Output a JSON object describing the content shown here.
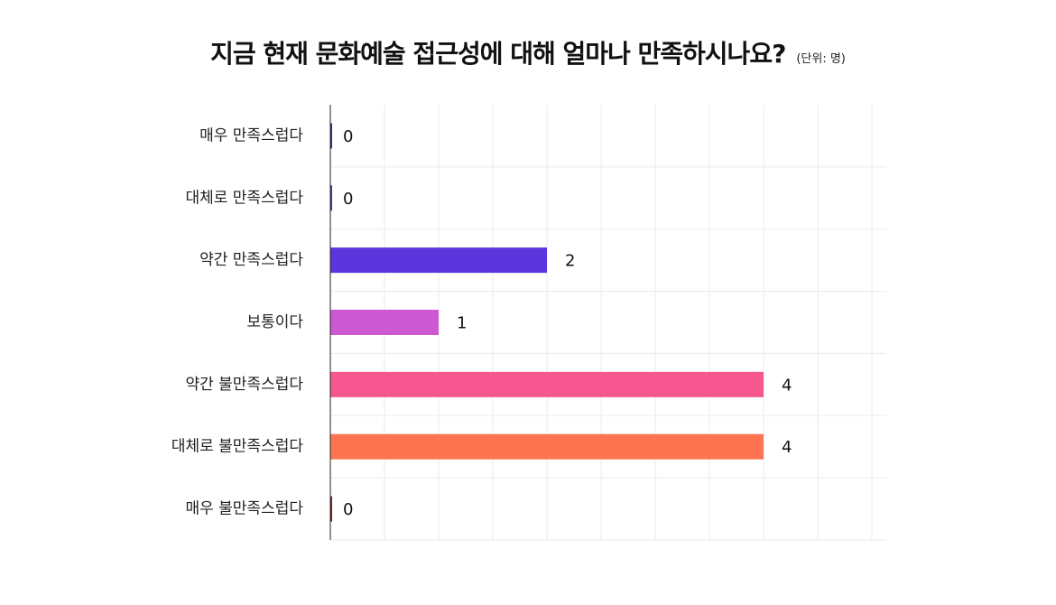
{
  "title": "지금 현재 문화예술 접근성에 대해 얼마나 만족하시나요?",
  "unit": "(단위: 명)",
  "chart_data": {
    "type": "bar",
    "orientation": "horizontal",
    "categories": [
      "매우 만족스럽다",
      "대체로 만족스럽다",
      "약간 만족스럽다",
      "보통이다",
      "약간 불만족스럽다",
      "대체로 불만족스럽다",
      "매우 불만족스럽다"
    ],
    "values": [
      0,
      0,
      2,
      1,
      4,
      4,
      0
    ],
    "value_labels": [
      "0",
      "0",
      "2",
      "1",
      "4",
      "4",
      "0"
    ],
    "colors": [
      "#2b2f8f",
      "#3b3fb0",
      "#5b35db",
      "#cc59d2",
      "#f5578e",
      "#fc7550",
      "#8b1a1a"
    ],
    "xlim": [
      0,
      5
    ],
    "grid": true,
    "legend": "none"
  }
}
